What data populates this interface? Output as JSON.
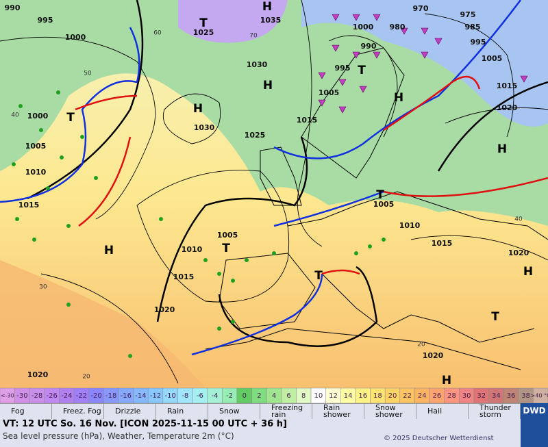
{
  "map": {
    "pressure_labels": [
      "990",
      "995",
      "1000",
      "1025",
      "1035",
      "1030",
      "1000",
      "980",
      "970",
      "975",
      "985",
      "995",
      "990",
      "995",
      "1005",
      "1015",
      "1020",
      "1005",
      "1015",
      "1030",
      "1025",
      "1000",
      "1005",
      "1010",
      "1015",
      "1005",
      "1010",
      "1015",
      "1005",
      "1010",
      "1015",
      "1020",
      "1020",
      "1020",
      "1020"
    ],
    "centers": [
      "H",
      "H",
      "H",
      "H",
      "H",
      "H",
      "H",
      "H",
      "T",
      "T",
      "T",
      "T",
      "T",
      "T",
      "T"
    ],
    "grid_labels": [
      "60",
      "50",
      "40",
      "70",
      "30",
      "20",
      "40",
      "20"
    ]
  },
  "colorbar": {
    "cells": [
      {
        "label": "<-30",
        "color": "#e0a0e8"
      },
      {
        "label": "-30",
        "color": "#d090e8"
      },
      {
        "label": "-28",
        "color": "#c890e8"
      },
      {
        "label": "-26",
        "color": "#c088f0"
      },
      {
        "label": "-24",
        "color": "#b080f0"
      },
      {
        "label": "-22",
        "color": "#a080f8"
      },
      {
        "label": "-20",
        "color": "#8a86ff"
      },
      {
        "label": "-18",
        "color": "#8898ff"
      },
      {
        "label": "-16",
        "color": "#86a8ff"
      },
      {
        "label": "-14",
        "color": "#86b8ff"
      },
      {
        "label": "-12",
        "color": "#88c8ff"
      },
      {
        "label": "-10",
        "color": "#94d8ff"
      },
      {
        "label": "-8",
        "color": "#a0e6ff"
      },
      {
        "label": "-6",
        "color": "#a4f0f0"
      },
      {
        "label": "-4",
        "color": "#a4f0d4"
      },
      {
        "label": "-2",
        "color": "#96eeb4"
      },
      {
        "label": "0",
        "color": "#62cc62"
      },
      {
        "label": "2",
        "color": "#80dc80"
      },
      {
        "label": "4",
        "color": "#a0e690"
      },
      {
        "label": "6",
        "color": "#c0eea4"
      },
      {
        "label": "8",
        "color": "#e0f8c4"
      },
      {
        "label": "10",
        "color": "#ffffff"
      },
      {
        "label": "12",
        "color": "#ffffd4"
      },
      {
        "label": "14",
        "color": "#ffffa4"
      },
      {
        "label": "16",
        "color": "#fff284"
      },
      {
        "label": "18",
        "color": "#ffe474"
      },
      {
        "label": "20",
        "color": "#ffd466"
      },
      {
        "label": "22",
        "color": "#ffc462"
      },
      {
        "label": "24",
        "color": "#ffb462"
      },
      {
        "label": "26",
        "color": "#ffa470"
      },
      {
        "label": "28",
        "color": "#ff9480"
      },
      {
        "label": "30",
        "color": "#f08484"
      },
      {
        "label": "32",
        "color": "#e07474"
      },
      {
        "label": "34",
        "color": "#d07676"
      },
      {
        "label": "36",
        "color": "#c08474"
      },
      {
        "label": "38",
        "color": "#b09484"
      },
      {
        "label": ">40 °C",
        "color": "#d0b0a0"
      }
    ]
  },
  "legend": [
    "Fog",
    "Freez. Fog",
    "Drizzle",
    "Rain",
    "Snow",
    "Freezing rain",
    "Rain shower",
    "Snow shower",
    "Hail",
    "Thunder storm"
  ],
  "footer": {
    "valid_time": "VT: 12 UTC So.  16 Nov. [ICON 2025-11-15  00 UTC + 36 h]",
    "subtitle": "Sea level pressure (hPa), Weather, Temperature 2m (°C)",
    "copyright": "© 2025 Deutscher Wetterdienst",
    "logo": "DWD"
  }
}
